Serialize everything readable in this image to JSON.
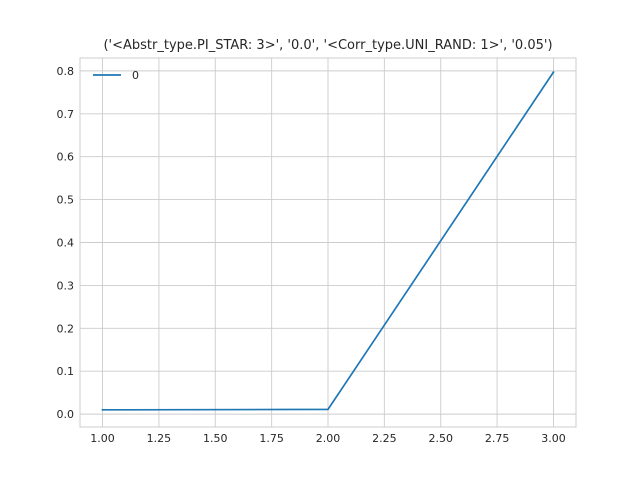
{
  "chart_data": {
    "type": "line",
    "title": "('<Abstr_type.PI_STAR: 3>', '0.0', '<Corr_type.UNI_RAND: 1>', '0.05')",
    "xlabel": "",
    "ylabel": "",
    "xlim": [
      0.9,
      3.1
    ],
    "ylim": [
      -0.03,
      0.83
    ],
    "x_ticks": [
      1.0,
      1.25,
      1.5,
      1.75,
      2.0,
      2.25,
      2.5,
      2.75,
      3.0
    ],
    "x_tick_labels": [
      "1.00",
      "1.25",
      "1.50",
      "1.75",
      "2.00",
      "2.25",
      "2.50",
      "2.75",
      "3.00"
    ],
    "y_ticks": [
      0.0,
      0.1,
      0.2,
      0.3,
      0.4,
      0.5,
      0.6,
      0.7,
      0.8
    ],
    "y_tick_labels": [
      "0.0",
      "0.1",
      "0.2",
      "0.3",
      "0.4",
      "0.5",
      "0.6",
      "0.7",
      "0.8"
    ],
    "grid": true,
    "legend": {
      "position": "top-left"
    },
    "series": [
      {
        "name": "0",
        "color": "#1f77b4",
        "x": [
          1.0,
          2.0,
          3.0
        ],
        "y": [
          0.01,
          0.011,
          0.797
        ]
      }
    ]
  }
}
